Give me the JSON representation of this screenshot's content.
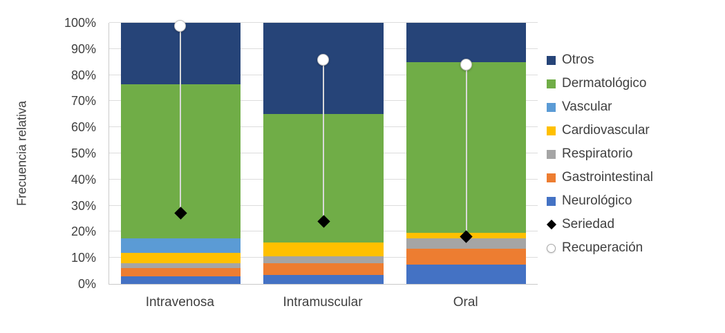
{
  "chart_data": {
    "type": "bar",
    "subtype": "stacked-100",
    "title": "",
    "xlabel": "",
    "ylabel": "Frecuencia relativa",
    "ylim": [
      0,
      100
    ],
    "yticks": [
      "0%",
      "10%",
      "20%",
      "30%",
      "40%",
      "50%",
      "60%",
      "70%",
      "80%",
      "90%",
      "100%"
    ],
    "grid": true,
    "legend_position": "right",
    "categories": [
      "Intravenosa",
      "Intramuscular",
      "Oral"
    ],
    "series": [
      {
        "name": "Neurológico",
        "color": "#4472C4",
        "values": [
          3,
          3.5,
          7.5
        ]
      },
      {
        "name": "Gastrointestinal",
        "color": "#ED7D31",
        "values": [
          3,
          4.5,
          6
        ]
      },
      {
        "name": "Respiratorio",
        "color": "#A5A5A5",
        "values": [
          2,
          2.5,
          4
        ]
      },
      {
        "name": "Cardiovascular",
        "color": "#FFC000",
        "values": [
          4,
          5.5,
          2
        ]
      },
      {
        "name": "Vascular",
        "color": "#5B9BD5",
        "values": [
          5.5,
          0,
          0
        ]
      },
      {
        "name": "Dermatológico",
        "color": "#70AD47",
        "values": [
          59,
          49,
          65.5
        ]
      },
      {
        "name": "Otros",
        "color": "#264478",
        "values": [
          23.5,
          35,
          15
        ]
      }
    ],
    "markers": [
      {
        "name": "Seriedad",
        "shape": "diamond",
        "color": "#000000",
        "values": [
          27,
          24,
          18
        ]
      },
      {
        "name": "Recuperación",
        "shape": "circle",
        "color": "#FFFFFF",
        "values": [
          99,
          86,
          84
        ]
      }
    ]
  },
  "legend": {
    "items": [
      {
        "label": "Otros",
        "swatch": "square",
        "color": "#264478"
      },
      {
        "label": "Dermatológico",
        "swatch": "square",
        "color": "#70AD47"
      },
      {
        "label": "Vascular",
        "swatch": "square",
        "color": "#5B9BD5"
      },
      {
        "label": "Cardiovascular",
        "swatch": "square",
        "color": "#FFC000"
      },
      {
        "label": "Respiratorio",
        "swatch": "square",
        "color": "#A5A5A5"
      },
      {
        "label": "Gastrointestinal",
        "swatch": "square",
        "color": "#ED7D31"
      },
      {
        "label": "Neurológico",
        "swatch": "square",
        "color": "#4472C4"
      },
      {
        "label": "Seriedad",
        "swatch": "diamond",
        "color": "#000000"
      },
      {
        "label": "Recuperación",
        "swatch": "circle",
        "color": "#FFFFFF"
      }
    ]
  }
}
